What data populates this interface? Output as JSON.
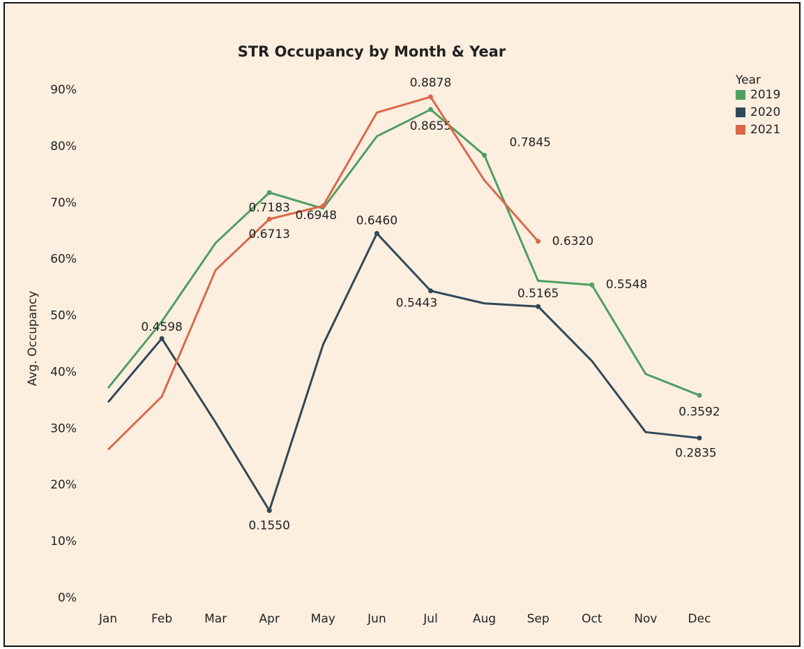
{
  "chart_data": {
    "type": "line",
    "title": "STR Occupancy by Month & Year",
    "y_label": "Avg. Occupancy",
    "legend_title": "Year",
    "legend": "top-right",
    "categories": [
      "Jan",
      "Feb",
      "Mar",
      "Apr",
      "May",
      "Jun",
      "Jul",
      "Aug",
      "Sep",
      "Oct",
      "Nov",
      "Dec"
    ],
    "ylim": [
      0,
      0.9
    ],
    "yticks": [
      {
        "value": 0,
        "label": "0%"
      },
      {
        "value": 0.1,
        "label": "10%"
      },
      {
        "value": 0.2,
        "label": "20%"
      },
      {
        "value": 0.3,
        "label": "30%"
      },
      {
        "value": 0.4,
        "label": "40%"
      },
      {
        "value": 0.5,
        "label": "50%"
      },
      {
        "value": 0.6,
        "label": "60%"
      },
      {
        "value": 0.7,
        "label": "70%"
      },
      {
        "value": 0.8,
        "label": "80%"
      },
      {
        "value": 0.9,
        "label": "90%"
      }
    ],
    "series": [
      {
        "name": "2019",
        "color": "#4e9e62",
        "values": [
          0.372,
          0.49,
          0.629,
          0.7183,
          0.69,
          0.818,
          0.8655,
          0.7845,
          0.562,
          0.5548,
          0.397,
          0.3592
        ],
        "value_labels": [
          null,
          null,
          null,
          "0.7183",
          null,
          null,
          "0.8655",
          "0.7845",
          null,
          "0.5548",
          null,
          "0.3592"
        ]
      },
      {
        "name": "2020",
        "color": "#2f4858",
        "values": [
          0.347,
          0.4598,
          0.311,
          0.155,
          0.449,
          0.646,
          0.5443,
          0.522,
          0.5165,
          0.42,
          0.294,
          0.2835
        ],
        "value_labels": [
          null,
          "0.4598",
          null,
          "0.1550",
          null,
          "0.6460",
          "0.5443",
          null,
          "0.5165",
          null,
          null,
          "0.2835"
        ]
      },
      {
        "name": "2021",
        "color": "#d9694a",
        "values": [
          0.263,
          0.357,
          0.581,
          0.6713,
          0.6948,
          0.86,
          0.8878,
          0.74,
          0.632,
          null,
          null,
          null
        ],
        "value_labels": [
          null,
          null,
          null,
          "0.6713",
          "0.6948",
          null,
          "0.8878",
          null,
          "0.6320",
          null,
          null,
          null
        ]
      }
    ]
  }
}
